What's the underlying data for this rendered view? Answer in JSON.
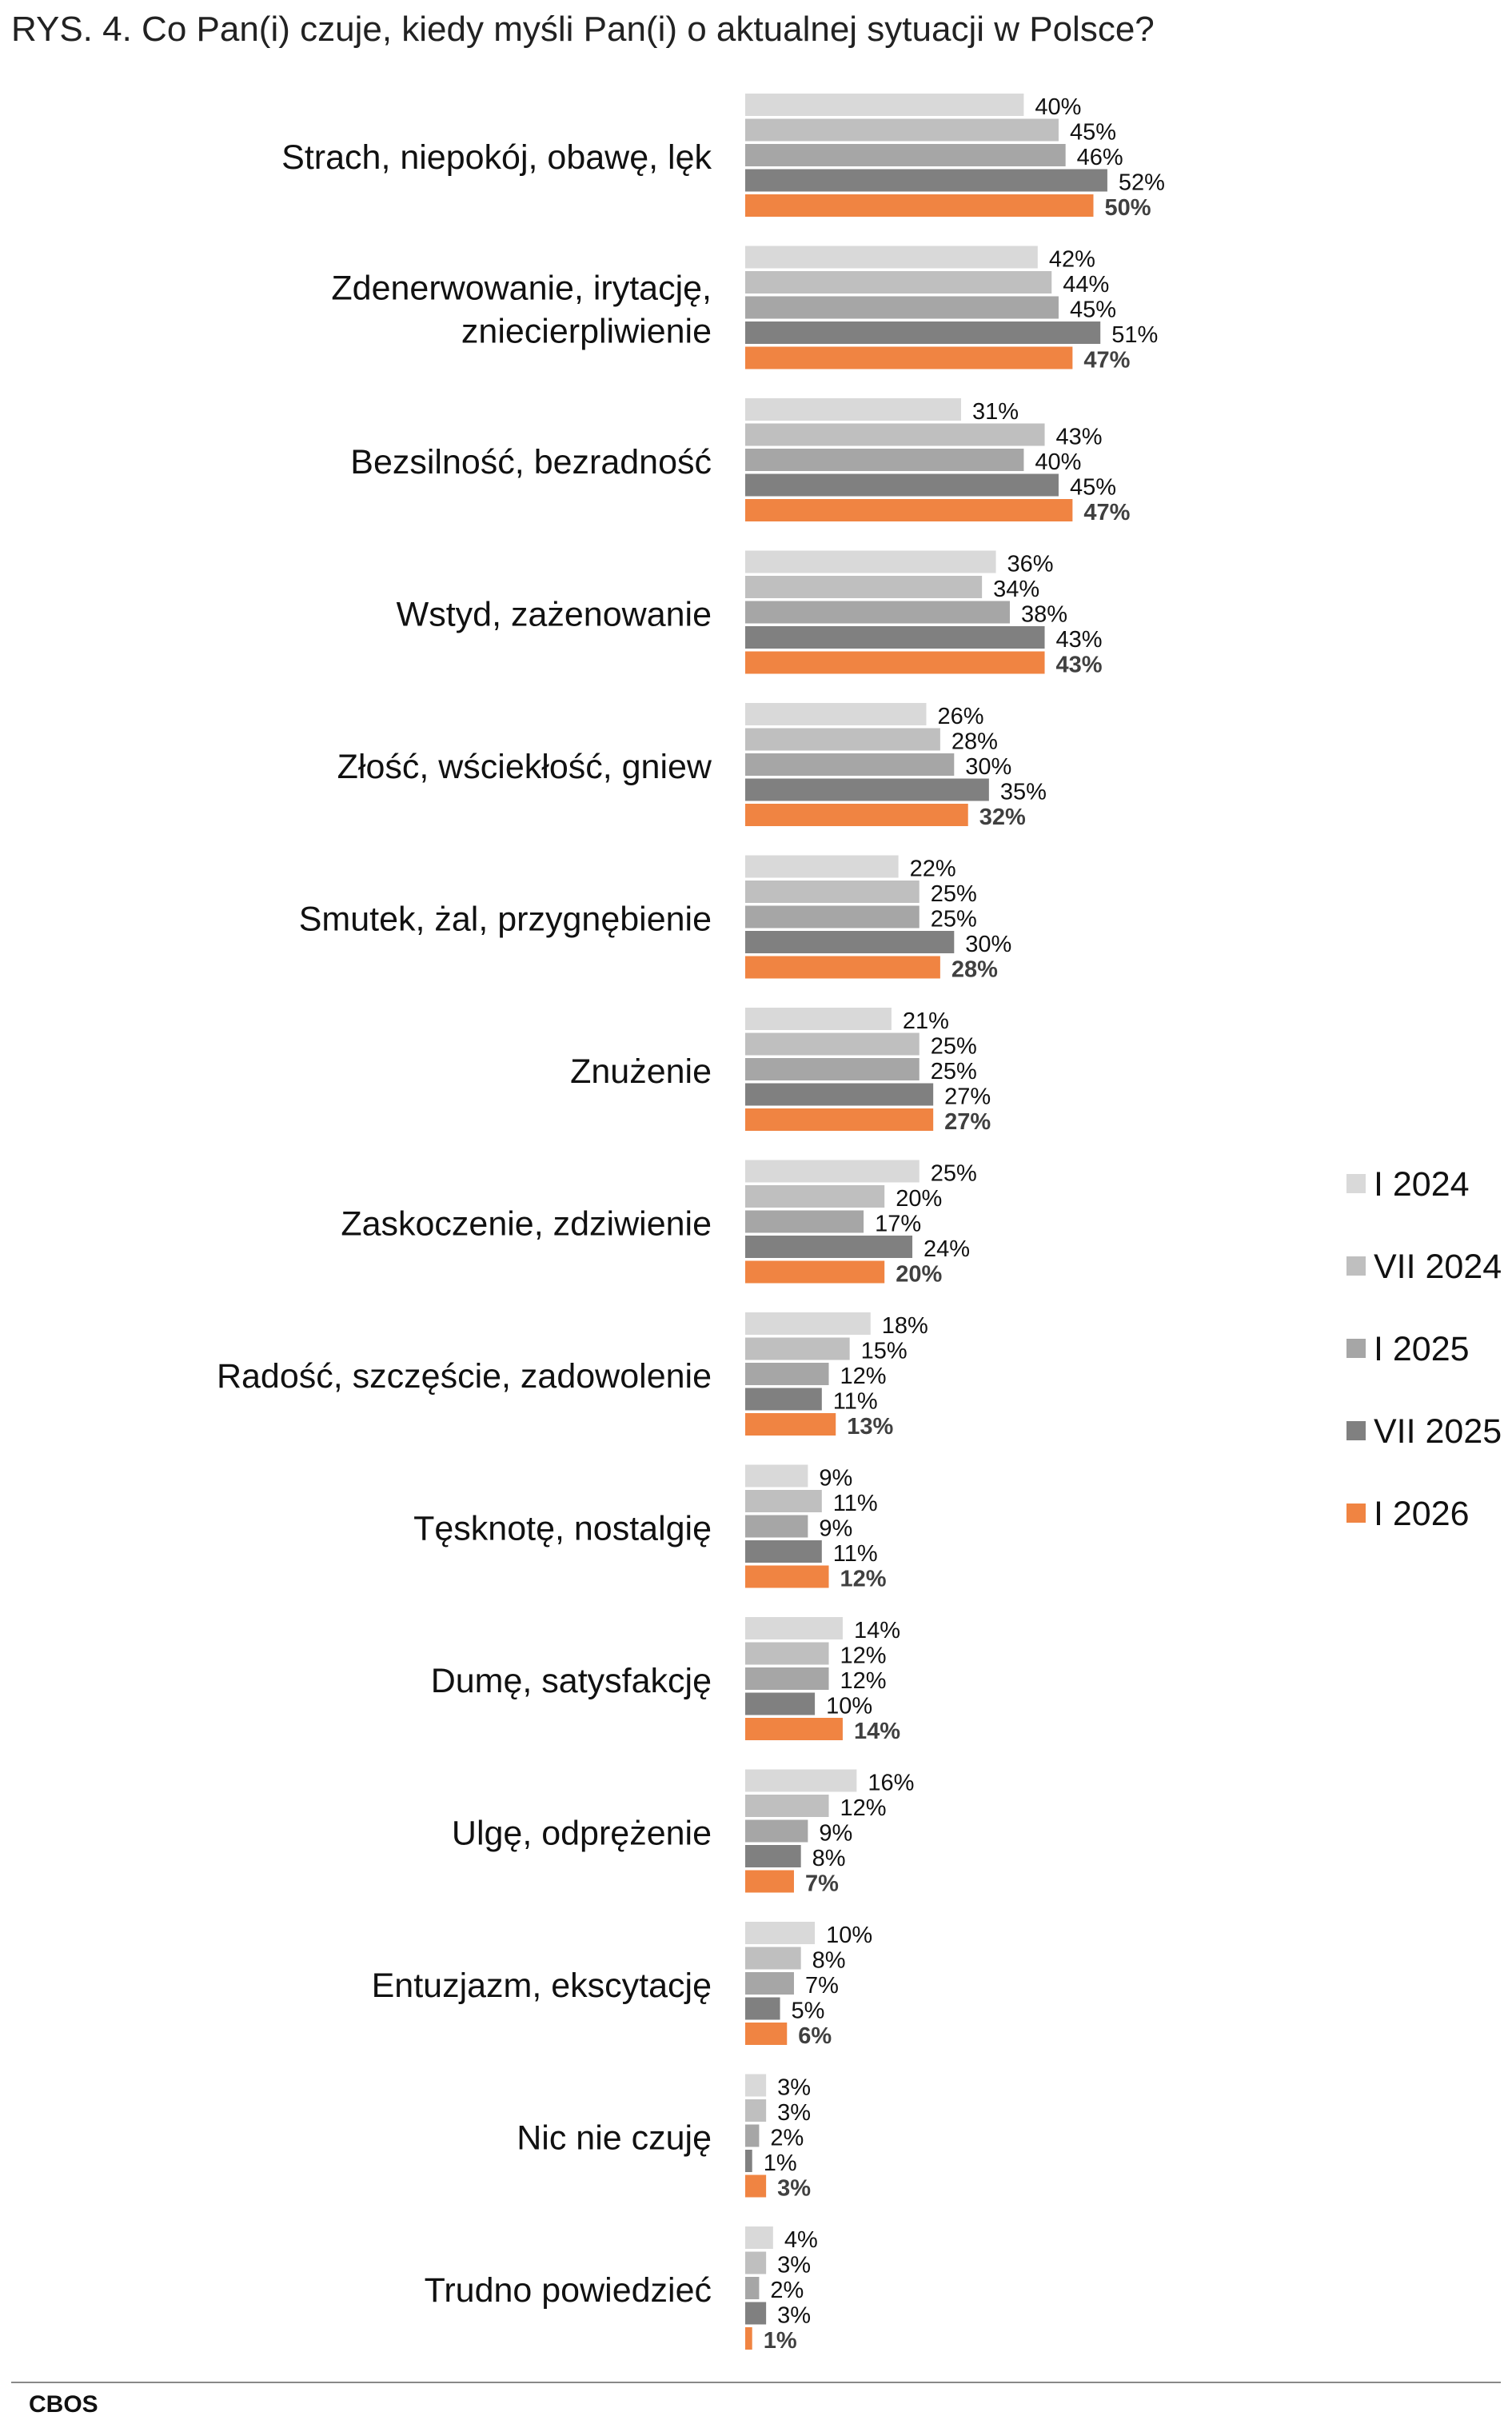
{
  "title": "RYS. 4. Co Pan(i) czuje, kiedy myśli Pan(i) o aktualnej sytuacji w Polsce?",
  "source": "CBOS",
  "chart_data": {
    "type": "bar",
    "orientation": "horizontal",
    "title": "RYS. 4. Co Pan(i) czuje, kiedy myśli Pan(i) o aktualnej sytuacji w Polsce?",
    "xlabel": "",
    "ylabel": "",
    "xlim": [
      0,
      55
    ],
    "grid": false,
    "legend_position": "right",
    "value_suffix": "%",
    "categories": [
      "Strach, niepokój, obawę, lęk",
      "Zdenerwowanie, irytację, zniecierpliwienie",
      "Bezsilność, bezradność",
      "Wstyd, zażenowanie",
      "Złość, wściekłość, gniew",
      "Smutek, żal, przygnębienie",
      "Znużenie",
      "Zaskoczenie, zdziwienie",
      "Radość, szczęście, zadowolenie",
      "Tęsknotę, nostalgię",
      "Dumę, satysfakcję",
      "Ulgę, odprężenie",
      "Entuzjazm, ekscytację",
      "Nic nie czuję",
      "Trudno powiedzieć"
    ],
    "series": [
      {
        "name": "I 2024",
        "color": "#d9d9d9",
        "values": [
          40,
          42,
          31,
          36,
          26,
          22,
          21,
          25,
          18,
          9,
          14,
          16,
          10,
          3,
          4
        ]
      },
      {
        "name": "VII 2024",
        "color": "#bfbfbf",
        "values": [
          45,
          44,
          43,
          34,
          28,
          25,
          25,
          20,
          15,
          11,
          12,
          12,
          8,
          3,
          3
        ]
      },
      {
        "name": "I 2025",
        "color": "#a6a6a6",
        "values": [
          46,
          45,
          40,
          38,
          30,
          25,
          25,
          17,
          12,
          9,
          12,
          9,
          7,
          2,
          2
        ]
      },
      {
        "name": "VII 2025",
        "color": "#808080",
        "values": [
          52,
          51,
          45,
          43,
          35,
          30,
          27,
          24,
          11,
          11,
          10,
          8,
          5,
          1,
          3
        ]
      },
      {
        "name": "I 2026",
        "color": "#f08442",
        "values": [
          50,
          47,
          47,
          43,
          32,
          28,
          27,
          20,
          13,
          12,
          14,
          7,
          6,
          3,
          1
        ]
      }
    ]
  }
}
